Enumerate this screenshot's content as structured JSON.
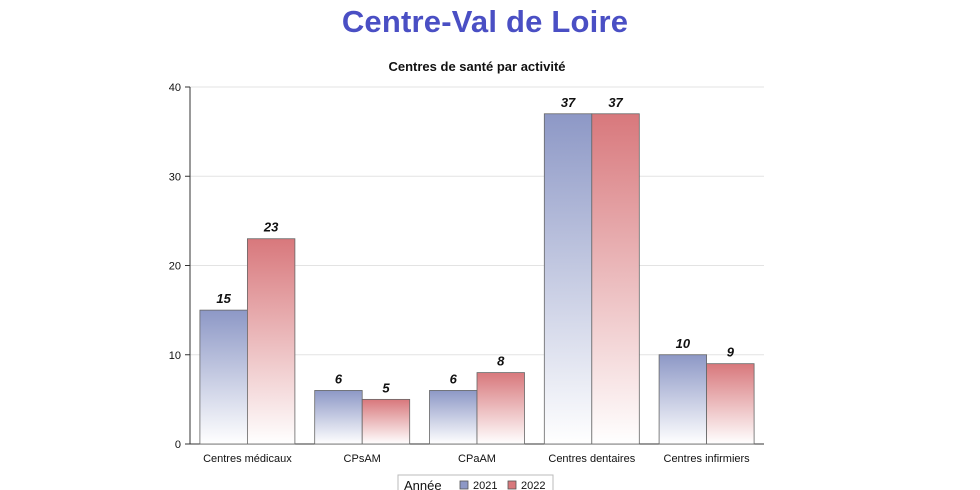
{
  "page_title": "Centre-Val de Loire",
  "chart_data": {
    "type": "bar",
    "title": "Centres de santé par activité",
    "categories": [
      "Centres médicaux",
      "CPsAM",
      "CPaAM",
      "Centres dentaires",
      "Centres infirmiers"
    ],
    "series": [
      {
        "name": "2021",
        "values": [
          15,
          6,
          6,
          37,
          10
        ],
        "color": "#8d98c6"
      },
      {
        "name": "2022",
        "values": [
          23,
          5,
          8,
          37,
          9
        ],
        "color": "#d8787c"
      }
    ],
    "ylim": [
      0,
      40
    ],
    "yticks": [
      0,
      10,
      20,
      30,
      40
    ],
    "grid": true,
    "legend": {
      "title": "Année",
      "position": "bottom"
    }
  }
}
